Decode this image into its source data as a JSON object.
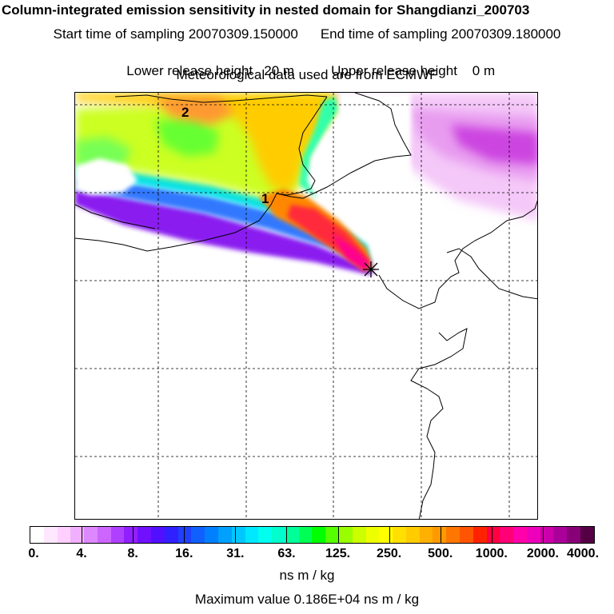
{
  "title": "Column-integrated emission sensitivity in nested domain for Shangdianzi_200703",
  "sampling": {
    "start": "Start time of sampling 20070309.150000",
    "end": "End time of sampling 20070309.180000"
  },
  "release": {
    "lower": "Lower release height   20 m",
    "upper": "Upper release height    0 m"
  },
  "met": "Meteorological data used are from ECMWF",
  "map": {
    "labels": [
      "1",
      "2"
    ],
    "receptor_marker": "star-marker"
  },
  "colorbar": {
    "colors": [
      "#ffffff",
      "#ffe8ff",
      "#ffd0ff",
      "#f0b0ff",
      "#dd88ff",
      "#cc66ff",
      "#b040ff",
      "#9020ff",
      "#7010ff",
      "#5010ff",
      "#3020ff",
      "#2040ff",
      "#1060ff",
      "#0080ff",
      "#00a0ff",
      "#00c8ff",
      "#00e8ff",
      "#00ffee",
      "#00ffcc",
      "#00ff99",
      "#00ff55",
      "#00ff00",
      "#55ff00",
      "#99ff00",
      "#ccff00",
      "#eeff00",
      "#ffff00",
      "#ffe000",
      "#ffcc00",
      "#ffb000",
      "#ff9900",
      "#ff7700",
      "#ff5500",
      "#ff2200",
      "#ff0040",
      "#ff0077",
      "#ff00aa",
      "#ee00bb",
      "#cc00aa",
      "#aa0099",
      "#880077",
      "#550044"
    ],
    "ticks": [
      "0.",
      "4.",
      "8.",
      "16.",
      "31.",
      "63.",
      "125.",
      "250.",
      "500.",
      "1000.",
      "2000.",
      "4000."
    ],
    "units": "ns m / kg"
  },
  "max_value": "Maximum value  0.186E+04 ns m / kg"
}
